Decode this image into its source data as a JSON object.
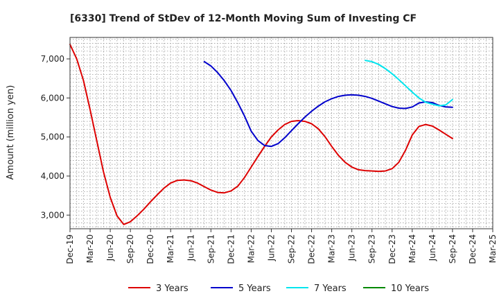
{
  "chart_data": {
    "type": "line",
    "title": "[6330]  Trend of StDev of 12-Month Moving Sum of Investing CF",
    "ylabel": "Amount (million yen)",
    "xlabel": "",
    "ylim": [
      2650,
      7550
    ],
    "yticks": [
      3000,
      4000,
      5000,
      6000,
      7000
    ],
    "ytick_labels": [
      "3,000",
      "4,000",
      "5,000",
      "6,000",
      "7,000"
    ],
    "x_range": [
      "2019-12",
      "2025-03"
    ],
    "x_ticks": [
      "2019-12",
      "2020-03",
      "2020-06",
      "2020-09",
      "2020-12",
      "2021-03",
      "2021-06",
      "2021-09",
      "2021-12",
      "2022-03",
      "2022-06",
      "2022-09",
      "2022-12",
      "2023-03",
      "2023-06",
      "2023-09",
      "2023-12",
      "2024-03",
      "2024-06",
      "2024-09",
      "2024-12",
      "2025-03"
    ],
    "x_tick_labels": [
      "Dec-19",
      "Mar-20",
      "Jun-20",
      "Sep-20",
      "Dec-20",
      "Mar-21",
      "Jun-21",
      "Sep-21",
      "Dec-21",
      "Mar-22",
      "Jun-22",
      "Sep-22",
      "Dec-22",
      "Mar-23",
      "Jun-23",
      "Sep-23",
      "Dec-23",
      "Mar-24",
      "Jun-24",
      "Sep-24",
      "Dec-24",
      "Mar-25"
    ],
    "grid": true,
    "legend_position": "bottom",
    "series": [
      {
        "name": "3 Years",
        "color": "#dd0000",
        "x": [
          "2019-12",
          "2020-01",
          "2020-02",
          "2020-03",
          "2020-04",
          "2020-05",
          "2020-06",
          "2020-07",
          "2020-08",
          "2020-09",
          "2020-10",
          "2020-11",
          "2020-12",
          "2021-01",
          "2021-02",
          "2021-03",
          "2021-04",
          "2021-05",
          "2021-06",
          "2021-07",
          "2021-08",
          "2021-09",
          "2021-10",
          "2021-11",
          "2021-12",
          "2022-01",
          "2022-02",
          "2022-03",
          "2022-04",
          "2022-05",
          "2022-06",
          "2022-07",
          "2022-08",
          "2022-09",
          "2022-10",
          "2022-11",
          "2022-12",
          "2023-01",
          "2023-02",
          "2023-03",
          "2023-04",
          "2023-05",
          "2023-06",
          "2023-07",
          "2023-08",
          "2023-09",
          "2023-10",
          "2023-11",
          "2023-12",
          "2024-01",
          "2024-02",
          "2024-03",
          "2024-04",
          "2024-05",
          "2024-06",
          "2024-07",
          "2024-08",
          "2024-09"
        ],
        "values": [
          7370,
          7000,
          6450,
          5700,
          4900,
          4100,
          3450,
          2980,
          2760,
          2830,
          2980,
          3150,
          3340,
          3520,
          3690,
          3820,
          3890,
          3900,
          3880,
          3820,
          3730,
          3640,
          3580,
          3570,
          3620,
          3740,
          3960,
          4230,
          4500,
          4760,
          5000,
          5180,
          5320,
          5400,
          5420,
          5400,
          5340,
          5210,
          5010,
          4760,
          4530,
          4350,
          4230,
          4160,
          4140,
          4130,
          4120,
          4130,
          4190,
          4350,
          4660,
          5050,
          5270,
          5320,
          5280,
          5180,
          5070,
          4960
        ]
      },
      {
        "name": "5 Years",
        "color": "#0000cc",
        "x": [
          "2021-08",
          "2021-09",
          "2021-10",
          "2021-11",
          "2021-12",
          "2022-01",
          "2022-02",
          "2022-03",
          "2022-04",
          "2022-05",
          "2022-06",
          "2022-07",
          "2022-08",
          "2022-09",
          "2022-10",
          "2022-11",
          "2022-12",
          "2023-01",
          "2023-02",
          "2023-03",
          "2023-04",
          "2023-05",
          "2023-06",
          "2023-07",
          "2023-08",
          "2023-09",
          "2023-10",
          "2023-11",
          "2023-12",
          "2024-01",
          "2024-02",
          "2024-03",
          "2024-04",
          "2024-05",
          "2024-06",
          "2024-07",
          "2024-08",
          "2024-09"
        ],
        "values": [
          6930,
          6820,
          6650,
          6440,
          6190,
          5880,
          5540,
          5150,
          4910,
          4780,
          4760,
          4830,
          4980,
          5160,
          5340,
          5510,
          5660,
          5790,
          5900,
          5980,
          6040,
          6070,
          6080,
          6070,
          6040,
          5990,
          5920,
          5850,
          5780,
          5740,
          5730,
          5770,
          5870,
          5900,
          5880,
          5810,
          5770,
          5760
        ]
      },
      {
        "name": "7 Years",
        "color": "#00e5ee",
        "x": [
          "2023-08",
          "2023-09",
          "2023-10",
          "2023-11",
          "2023-12",
          "2024-01",
          "2024-02",
          "2024-03",
          "2024-04",
          "2024-05",
          "2024-06",
          "2024-07",
          "2024-08",
          "2024-09"
        ],
        "values": [
          6960,
          6930,
          6860,
          6750,
          6620,
          6470,
          6310,
          6150,
          6000,
          5890,
          5840,
          5800,
          5820,
          5960
        ]
      },
      {
        "name": "10 Years",
        "color": "#008800",
        "x": [],
        "values": []
      }
    ]
  }
}
